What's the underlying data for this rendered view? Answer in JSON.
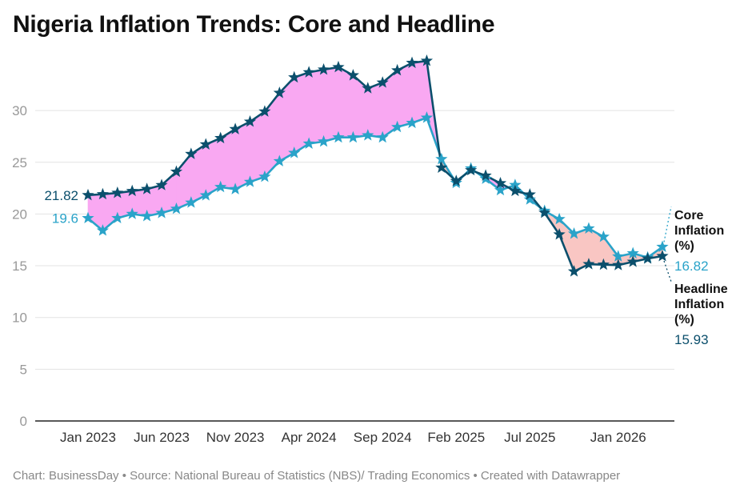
{
  "title": "Nigeria Inflation Trends: Core and Headline",
  "footer": "Chart: BusinessDay • Source: National Bureau of Statistics (NBS)/ Trading Economics • Created with Datawrapper",
  "colors": {
    "headline": "#0b4f6c",
    "core": "#2aa3c9",
    "fill_headline_above": "#f9a8f2",
    "fill_core_above": "#f9c6c3"
  },
  "chart_data": {
    "type": "line",
    "x": [
      "Jan 2023",
      "Feb 2023",
      "Mar 2023",
      "Apr 2023",
      "May 2023",
      "Jun 2023",
      "Jul 2023",
      "Aug 2023",
      "Sep 2023",
      "Oct 2023",
      "Nov 2023",
      "Dec 2023",
      "Jan 2024",
      "Feb 2024",
      "Mar 2024",
      "Apr 2024",
      "May 2024",
      "Jun 2024",
      "Jul 2024",
      "Aug 2024",
      "Sep 2024",
      "Oct 2024",
      "Nov 2024",
      "Dec 2024",
      "Jan 2025",
      "Feb 2025",
      "Mar 2025",
      "Apr 2025",
      "May 2025",
      "Jun 2025",
      "Jul 2025",
      "Aug 2025",
      "Sep 2025",
      "Oct 2025",
      "Nov 2025",
      "Dec 2025",
      "Jan 2026",
      "Feb 2026",
      "Mar 2026",
      "Apr 2026"
    ],
    "xticks": [
      "Jan 2023",
      "Jun 2023",
      "Nov 2023",
      "Apr 2024",
      "Sep 2024",
      "Feb 2025",
      "Jul 2025",
      "Jan 2026"
    ],
    "ylim": [
      0,
      35
    ],
    "yticks": [
      0,
      5,
      10,
      15,
      20,
      25,
      30
    ],
    "grid": true,
    "series": [
      {
        "name": "Headline Inflation (%)",
        "values": [
          21.82,
          21.91,
          22.04,
          22.22,
          22.41,
          22.79,
          24.08,
          25.8,
          26.72,
          27.33,
          28.2,
          28.92,
          29.9,
          31.7,
          33.2,
          33.69,
          33.95,
          34.19,
          33.4,
          32.15,
          32.7,
          33.88,
          34.6,
          34.8,
          24.48,
          23.18,
          24.23,
          23.71,
          22.97,
          22.22,
          21.88,
          20.12,
          18.02,
          14.45,
          15.15,
          15.1,
          15.06,
          15.38,
          15.69,
          15.93
        ]
      },
      {
        "name": "Core Inflation (%)",
        "values": [
          19.6,
          18.4,
          19.6,
          20.0,
          19.8,
          20.1,
          20.5,
          21.1,
          21.8,
          22.6,
          22.4,
          23.1,
          23.6,
          25.1,
          25.9,
          26.8,
          27.0,
          27.4,
          27.4,
          27.6,
          27.4,
          28.4,
          28.8,
          29.3,
          25.3,
          23.0,
          24.4,
          23.4,
          22.3,
          22.8,
          21.4,
          20.3,
          19.5,
          18.1,
          18.6,
          17.8,
          15.9,
          16.2,
          15.8,
          16.82
        ]
      }
    ],
    "start_labels": {
      "headline": "21.82",
      "core": "19.6"
    },
    "end_labels": {
      "core_name": [
        "Core",
        "Inflation",
        "(%)"
      ],
      "core_value": "16.82",
      "headline_name": [
        "Headline",
        "Inflation",
        "(%)"
      ],
      "headline_value": "15.93"
    }
  }
}
